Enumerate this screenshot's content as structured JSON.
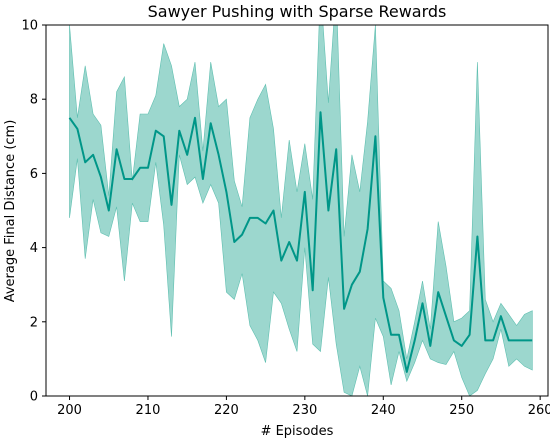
{
  "chart_data": {
    "type": "line",
    "title": "Sawyer Pushing with Sparse Rewards",
    "xlabel": "# Episodes",
    "ylabel": "Average Final Distance (cm)",
    "xlim": [
      197,
      261
    ],
    "ylim": [
      0,
      10
    ],
    "xticks": [
      200,
      210,
      220,
      230,
      240,
      250,
      260
    ],
    "yticks": [
      0,
      2,
      4,
      6,
      8,
      10
    ],
    "grid": false,
    "legend": "none",
    "line_color": "#009688",
    "band_color": "#5fbfb0",
    "series": [
      {
        "x": [
          200,
          201,
          202,
          203,
          204,
          205,
          206,
          207,
          208,
          209,
          210,
          211,
          212,
          213,
          214,
          215,
          216,
          217,
          218,
          219,
          220,
          221,
          222,
          223,
          224,
          225,
          226,
          227,
          228,
          229,
          230,
          231,
          232,
          233,
          234,
          235,
          236,
          237,
          238,
          239,
          240,
          241,
          242,
          243,
          244,
          245,
          246,
          247,
          248,
          249,
          250,
          251,
          252,
          253,
          254,
          255,
          256,
          257,
          258,
          259
        ],
        "mean": [
          7.5,
          7.2,
          6.3,
          6.5,
          5.9,
          5.0,
          6.65,
          5.85,
          5.85,
          6.15,
          6.15,
          7.15,
          7.0,
          5.15,
          7.15,
          6.5,
          7.5,
          5.85,
          7.35,
          6.5,
          5.5,
          4.15,
          4.35,
          4.8,
          4.8,
          4.65,
          5.0,
          3.65,
          4.15,
          3.65,
          5.5,
          2.85,
          7.65,
          5.0,
          6.65,
          2.35,
          3.0,
          3.35,
          4.5,
          7.0,
          2.65,
          1.65,
          1.65,
          0.65,
          1.5,
          2.5,
          1.35,
          2.8,
          2.15,
          1.5,
          1.35,
          1.65,
          4.3,
          1.5,
          1.5,
          2.15,
          1.5,
          1.5,
          1.5,
          1.5
        ],
        "lower": [
          4.8,
          6.4,
          3.7,
          5.3,
          4.4,
          4.3,
          5.1,
          3.1,
          5.2,
          4.7,
          4.7,
          6.3,
          4.6,
          1.6,
          6.5,
          5.7,
          5.9,
          5.2,
          5.7,
          5.2,
          2.8,
          2.6,
          3.3,
          1.9,
          1.5,
          0.9,
          2.8,
          2.5,
          1.8,
          1.2,
          4.0,
          1.4,
          1.2,
          3.2,
          1.4,
          0.1,
          0.0,
          0.8,
          0.0,
          2.1,
          1.6,
          0.3,
          1.2,
          0.4,
          0.9,
          1.5,
          1.0,
          0.9,
          0.85,
          1.2,
          0.5,
          0.0,
          0.15,
          0.6,
          1.0,
          1.8,
          0.8,
          1.0,
          0.8,
          0.7
        ],
        "upper": [
          10.0,
          7.5,
          8.9,
          7.6,
          7.3,
          5.4,
          8.2,
          8.6,
          5.8,
          7.6,
          7.6,
          8.1,
          9.5,
          8.9,
          7.8,
          8.0,
          9.0,
          6.6,
          9.0,
          7.8,
          8.0,
          5.8,
          5.1,
          7.5,
          8.0,
          8.4,
          7.2,
          4.8,
          6.9,
          5.5,
          6.8,
          5.3,
          11.0,
          7.9,
          11.0,
          4.3,
          6.5,
          5.5,
          7.4,
          10.0,
          3.1,
          2.9,
          2.3,
          1.0,
          2.0,
          3.1,
          1.8,
          4.7,
          3.5,
          2.0,
          2.1,
          2.3,
          9.0,
          2.6,
          2.0,
          2.5,
          2.2,
          1.9,
          2.2,
          2.3
        ]
      }
    ]
  }
}
